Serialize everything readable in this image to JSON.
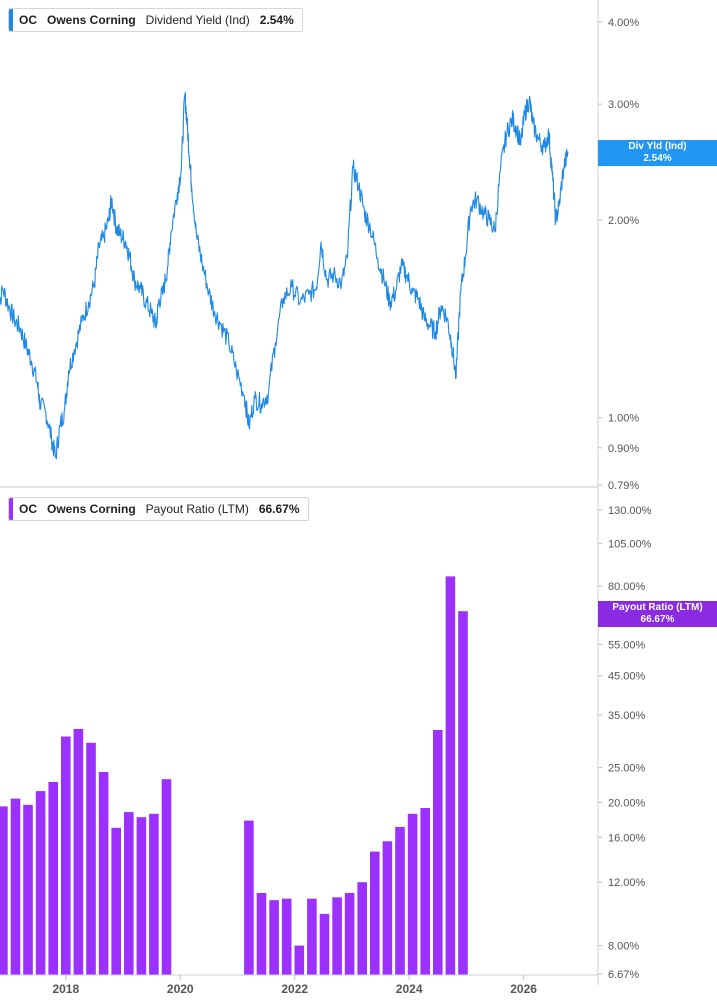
{
  "colors": {
    "yield_line": "#1e88e5",
    "yield_tag": "#2196f3",
    "payout_bar": "#9b30ff",
    "payout_tag": "#8a2be2",
    "axis": "#cfcfcf",
    "tick_text": "#555555"
  },
  "legends": {
    "top": {
      "ticker": "OC",
      "company": "Owens Corning",
      "metric": "Dividend Yield (Ind)",
      "value": "2.54%"
    },
    "bottom": {
      "ticker": "OC",
      "company": "Owens Corning",
      "metric": "Payout Ratio (LTM)",
      "value": "66.67%"
    }
  },
  "tags": {
    "top": {
      "label": "Div Yld (Ind)",
      "value": "2.54%"
    },
    "bottom": {
      "label": "Payout Ratio (LTM)",
      "value": "66.67%"
    }
  },
  "chart_data": [
    {
      "type": "line",
      "title": "",
      "series": [
        {
          "name": "Dividend Yield (Ind)",
          "unit": "%",
          "points": [
            [
              2016.8,
              1.45
            ],
            [
              2016.9,
              1.57
            ],
            [
              2017.0,
              1.48
            ],
            [
              2017.1,
              1.41
            ],
            [
              2017.2,
              1.37
            ],
            [
              2017.3,
              1.29
            ],
            [
              2017.4,
              1.22
            ],
            [
              2017.5,
              1.13
            ],
            [
              2017.55,
              1.05
            ],
            [
              2017.65,
              1.02
            ],
            [
              2017.75,
              0.93
            ],
            [
              2017.82,
              0.87
            ],
            [
              2017.9,
              0.97
            ],
            [
              2017.98,
              1.03
            ],
            [
              2018.05,
              1.18
            ],
            [
              2018.15,
              1.27
            ],
            [
              2018.28,
              1.4
            ],
            [
              2018.4,
              1.5
            ],
            [
              2018.5,
              1.6
            ],
            [
              2018.58,
              1.82
            ],
            [
              2018.66,
              1.88
            ],
            [
              2018.75,
              2.0
            ],
            [
              2018.8,
              2.15
            ],
            [
              2018.88,
              1.95
            ],
            [
              2018.95,
              1.9
            ],
            [
              2019.05,
              1.85
            ],
            [
              2019.12,
              1.75
            ],
            [
              2019.2,
              1.62
            ],
            [
              2019.3,
              1.57
            ],
            [
              2019.4,
              1.5
            ],
            [
              2019.5,
              1.44
            ],
            [
              2019.58,
              1.38
            ],
            [
              2019.62,
              1.5
            ],
            [
              2019.7,
              1.55
            ],
            [
              2019.78,
              1.7
            ],
            [
              2019.84,
              1.92
            ],
            [
              2019.95,
              2.2
            ],
            [
              2020.02,
              2.4
            ],
            [
              2020.08,
              3.1
            ],
            [
              2020.12,
              2.8
            ],
            [
              2020.16,
              2.5
            ],
            [
              2020.2,
              2.25
            ],
            [
              2020.28,
              1.9
            ],
            [
              2020.38,
              1.72
            ],
            [
              2020.5,
              1.55
            ],
            [
              2020.6,
              1.45
            ],
            [
              2020.72,
              1.38
            ],
            [
              2020.85,
              1.3
            ],
            [
              2020.98,
              1.18
            ],
            [
              2021.12,
              1.08
            ],
            [
              2021.2,
              0.97
            ],
            [
              2021.3,
              1.07
            ],
            [
              2021.42,
              1.05
            ],
            [
              2021.54,
              1.09
            ],
            [
              2021.66,
              1.3
            ],
            [
              2021.8,
              1.52
            ],
            [
              2021.95,
              1.58
            ],
            [
              2022.1,
              1.5
            ],
            [
              2022.25,
              1.54
            ],
            [
              2022.38,
              1.58
            ],
            [
              2022.46,
              1.85
            ],
            [
              2022.56,
              1.62
            ],
            [
              2022.68,
              1.65
            ],
            [
              2022.82,
              1.6
            ],
            [
              2022.92,
              1.75
            ],
            [
              2023.02,
              2.4
            ],
            [
              2023.12,
              2.25
            ],
            [
              2023.22,
              2.05
            ],
            [
              2023.32,
              1.95
            ],
            [
              2023.45,
              1.75
            ],
            [
              2023.56,
              1.62
            ],
            [
              2023.66,
              1.5
            ],
            [
              2023.76,
              1.55
            ],
            [
              2023.86,
              1.7
            ],
            [
              2023.96,
              1.65
            ],
            [
              2024.06,
              1.55
            ],
            [
              2024.16,
              1.52
            ],
            [
              2024.26,
              1.42
            ],
            [
              2024.36,
              1.38
            ],
            [
              2024.46,
              1.35
            ],
            [
              2024.56,
              1.48
            ],
            [
              2024.66,
              1.42
            ],
            [
              2024.74,
              1.3
            ],
            [
              2024.82,
              1.15
            ],
            [
              2024.9,
              1.55
            ],
            [
              2024.98,
              1.75
            ],
            [
              2025.08,
              2.1
            ],
            [
              2025.18,
              2.15
            ],
            [
              2025.3,
              2.05
            ],
            [
              2025.4,
              2.0
            ],
            [
              2025.5,
              1.92
            ],
            [
              2025.6,
              2.4
            ],
            [
              2025.7,
              2.7
            ],
            [
              2025.8,
              2.85
            ],
            [
              2025.88,
              2.75
            ],
            [
              2025.95,
              2.6
            ],
            [
              2026.02,
              2.9
            ],
            [
              2026.1,
              3.05
            ],
            [
              2026.16,
              2.8
            ],
            [
              2026.26,
              2.65
            ],
            [
              2026.36,
              2.58
            ],
            [
              2026.44,
              2.7
            ],
            [
              2026.5,
              2.35
            ],
            [
              2026.56,
              2.0
            ],
            [
              2026.62,
              2.1
            ],
            [
              2026.7,
              2.4
            ],
            [
              2026.78,
              2.54
            ]
          ]
        }
      ],
      "y_scale": "log",
      "yticks": [
        "4.00%",
        "3.00%",
        "2.00%",
        "1.00%",
        "0.90%",
        "0.79%"
      ],
      "y_tick_values": [
        4.0,
        3.0,
        2.0,
        1.0,
        0.9,
        0.79
      ],
      "ylim": [
        0.79,
        4.3
      ]
    },
    {
      "type": "bar",
      "title": "",
      "series": [
        {
          "name": "Payout Ratio (LTM)",
          "unit": "%",
          "points": [
            [
              2016.9,
              19.5
            ],
            [
              2017.12,
              20.5
            ],
            [
              2017.34,
              19.7
            ],
            [
              2017.56,
              21.5
            ],
            [
              2017.78,
              22.8
            ],
            [
              2018.0,
              30.5
            ],
            [
              2018.22,
              32.0
            ],
            [
              2018.44,
              29.3
            ],
            [
              2018.66,
              24.3
            ],
            [
              2018.88,
              17.0
            ],
            [
              2019.1,
              18.8
            ],
            [
              2019.32,
              18.2
            ],
            [
              2019.54,
              18.6
            ],
            [
              2019.76,
              23.2
            ],
            [
              2021.2,
              17.8
            ],
            [
              2021.42,
              11.2
            ],
            [
              2021.64,
              10.7
            ],
            [
              2021.86,
              10.8
            ],
            [
              2022.08,
              8.0
            ],
            [
              2022.3,
              10.8
            ],
            [
              2022.52,
              9.8
            ],
            [
              2022.74,
              10.9
            ],
            [
              2022.96,
              11.2
            ],
            [
              2023.18,
              12.0
            ],
            [
              2023.4,
              14.6
            ],
            [
              2023.62,
              15.6
            ],
            [
              2023.84,
              17.1
            ],
            [
              2024.06,
              18.6
            ],
            [
              2024.28,
              19.3
            ],
            [
              2024.5,
              31.8
            ],
            [
              2024.72,
              85.0
            ],
            [
              2024.94,
              68.0
            ]
          ]
        }
      ],
      "y_scale": "log",
      "yticks": [
        "130.00%",
        "105.00%",
        "80.00%",
        "55.00%",
        "45.00%",
        "35.00%",
        "25.00%",
        "20.00%",
        "16.00%",
        "12.00%",
        "8.00%",
        "6.67%"
      ],
      "y_tick_values": [
        130,
        105,
        80,
        55,
        45,
        35,
        25,
        20,
        16,
        12,
        8,
        6.67
      ],
      "ylim": [
        6.67,
        130
      ]
    }
  ],
  "x_axis": {
    "ticks": [
      "2018",
      "2020",
      "2022",
      "2024",
      "2026"
    ],
    "tick_values": [
      2018,
      2020,
      2022,
      2024,
      2026
    ],
    "range": [
      2016.85,
      2027.3
    ]
  }
}
